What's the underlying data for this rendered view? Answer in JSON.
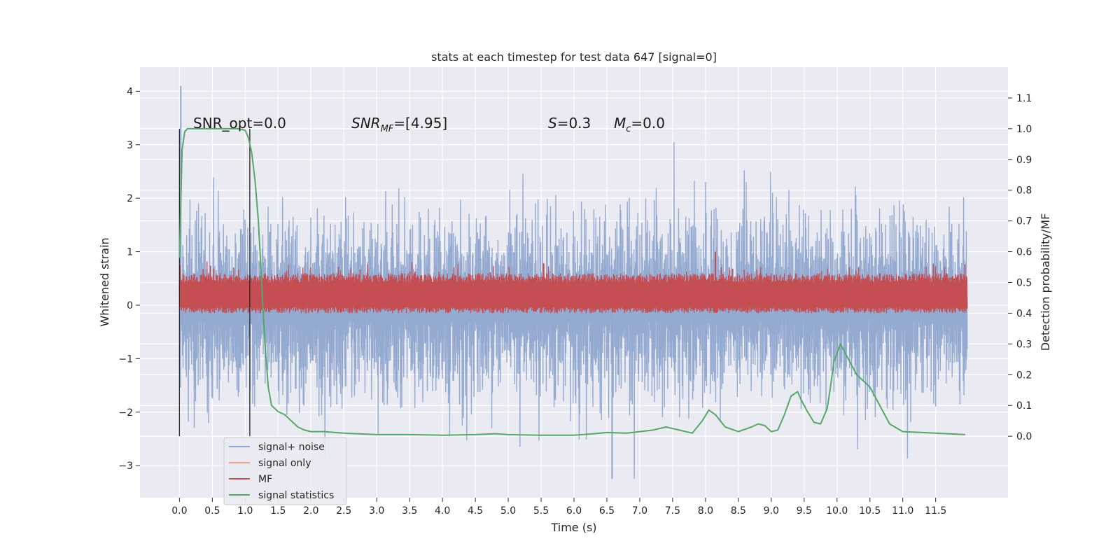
{
  "chart_data": {
    "type": "line",
    "title": "stats at each timestep for test data 647 [signal=0]",
    "xlabel": "Time (s)",
    "ylabel": "Whitened strain",
    "y2label": "Detection probability/MF",
    "xlim": [
      -0.6,
      12.6
    ],
    "ylim": [
      -3.6,
      4.45
    ],
    "y2lim": [
      -0.2,
      1.2
    ],
    "xticks": [
      0.0,
      0.5,
      1.0,
      1.5,
      2.0,
      2.5,
      3.0,
      3.5,
      4.0,
      4.5,
      5.0,
      5.5,
      6.0,
      6.5,
      7.0,
      7.5,
      8.0,
      8.5,
      9.0,
      9.5,
      10.0,
      10.5,
      11.0,
      11.5
    ],
    "xtick_labels": [
      "0.0",
      "0.5",
      "1.0",
      "1.5",
      "2.0",
      "2.5",
      "3.0",
      "3.5",
      "4.0",
      "4.5",
      "5.0",
      "5.5",
      "6.0",
      "6.5",
      "7.0",
      "7.5",
      "8.0",
      "8.5",
      "9.0",
      "9.5",
      "10.0",
      "10.5",
      "11.0",
      "11.5"
    ],
    "yticks": [
      -3,
      -2,
      -1,
      0,
      1,
      2,
      3,
      4
    ],
    "ytick_labels": [
      "−3",
      "−2",
      "−1",
      "0",
      "1",
      "2",
      "3",
      "4"
    ],
    "y2ticks": [
      0.0,
      0.1,
      0.2,
      0.3,
      0.4,
      0.5,
      0.6,
      0.7,
      0.8,
      0.9,
      1.0,
      1.1
    ],
    "y2tick_labels": [
      "0.0",
      "0.1",
      "0.2",
      "0.3",
      "0.4",
      "0.5",
      "0.6",
      "0.7",
      "0.8",
      "0.9",
      "1.0",
      "1.1"
    ],
    "grid": true,
    "legend_position": "lower-left",
    "annotations": {
      "snr_opt": "SNR_opt=0.0",
      "snr_mf": "SNR_MF=[4.95]",
      "s": "S=0.3",
      "mc": "M_c=0.0"
    },
    "vertical_markers": [
      0.0,
      1.07
    ],
    "series": [
      {
        "name": "signal+ noise",
        "color": "#8fa6cf",
        "kind": "dense-noise",
        "x_range": [
          0.0,
          11.98
        ],
        "samples": 2400,
        "y_typical_range": [
          -1.6,
          1.6
        ],
        "y_extremes": [
          -3.25,
          4.1
        ]
      },
      {
        "name": "signal only",
        "color": "#e8a58a",
        "kind": "flat",
        "value": 0.0
      },
      {
        "name": "MF",
        "color": "#c44e52",
        "kind": "dense-noise",
        "axis": "y2",
        "x_range": [
          0.0,
          11.98
        ],
        "samples": 2400,
        "y_typical_range": [
          0.4,
          0.53
        ],
        "y_extremes": [
          0.39,
          0.6
        ]
      },
      {
        "name": "signal statistics",
        "color": "#55a868",
        "axis": "y2",
        "x": [
          0.0,
          0.04,
          0.08,
          0.12,
          0.2,
          0.3,
          0.5,
          0.7,
          0.9,
          1.0,
          1.05,
          1.1,
          1.15,
          1.2,
          1.25,
          1.3,
          1.35,
          1.4,
          1.5,
          1.6,
          1.7,
          1.8,
          1.9,
          2.0,
          2.2,
          2.5,
          3.0,
          3.5,
          4.0,
          4.5,
          4.8,
          5.0,
          5.5,
          6.0,
          6.3,
          6.5,
          6.8,
          7.0,
          7.2,
          7.4,
          7.6,
          7.8,
          7.95,
          8.05,
          8.15,
          8.3,
          8.5,
          8.7,
          8.8,
          8.9,
          9.0,
          9.1,
          9.2,
          9.3,
          9.4,
          9.45,
          9.55,
          9.65,
          9.75,
          9.85,
          9.9,
          9.95,
          10.05,
          10.15,
          10.3,
          10.5,
          10.6,
          10.7,
          10.8,
          11.0,
          11.5,
          11.95
        ],
        "y": [
          0.58,
          0.93,
          0.99,
          1.0,
          1.0,
          1.0,
          1.0,
          1.0,
          1.0,
          0.995,
          0.97,
          0.92,
          0.83,
          0.7,
          0.5,
          0.3,
          0.16,
          0.1,
          0.08,
          0.07,
          0.05,
          0.03,
          0.02,
          0.015,
          0.015,
          0.01,
          0.005,
          0.005,
          0.003,
          0.005,
          0.008,
          0.005,
          0.003,
          0.003,
          0.008,
          0.012,
          0.01,
          0.015,
          0.02,
          0.03,
          0.02,
          0.01,
          0.05,
          0.085,
          0.07,
          0.03,
          0.015,
          0.03,
          0.04,
          0.035,
          0.015,
          0.02,
          0.07,
          0.13,
          0.145,
          0.12,
          0.08,
          0.045,
          0.04,
          0.09,
          0.16,
          0.24,
          0.3,
          0.26,
          0.2,
          0.16,
          0.12,
          0.08,
          0.04,
          0.015,
          0.01,
          0.005
        ]
      }
    ]
  },
  "legend": [
    {
      "label": "signal+ noise",
      "color": "#8fa6cf"
    },
    {
      "label": "signal only",
      "color": "#e8a58a"
    },
    {
      "label": "MF",
      "color": "#c44e52"
    },
    {
      "label": "signal statistics",
      "color": "#55a868"
    }
  ],
  "colors": {
    "plot_bg": "#eaeaf2",
    "grid": "#ffffff",
    "marker_line": "#262626"
  }
}
